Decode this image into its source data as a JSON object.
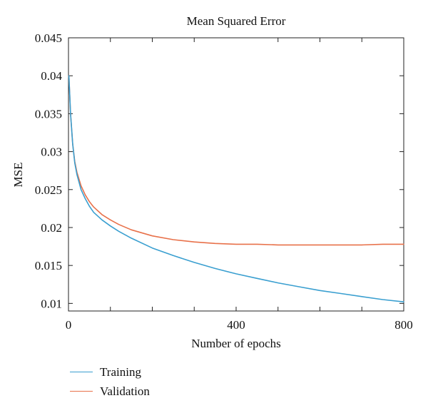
{
  "chart_data": {
    "type": "line",
    "title": "Mean Squared Error",
    "xlabel": "Number of epochs",
    "ylabel": "MSE",
    "xlim": [
      0,
      800
    ],
    "ylim": [
      0.009,
      0.045
    ],
    "xticks": [
      0,
      400,
      800
    ],
    "xtick_labels": [
      "0",
      "400",
      "800"
    ],
    "xminor_ticks": [
      100,
      200,
      300,
      500,
      600,
      700
    ],
    "yticks": [
      0.01,
      0.015,
      0.02,
      0.025,
      0.03,
      0.035,
      0.04,
      0.045
    ],
    "ytick_labels": [
      "0.01",
      "0.015",
      "0.02",
      "0.025",
      "0.03",
      "0.035",
      "0.04",
      "0.045"
    ],
    "legend_position": "below-left",
    "series": [
      {
        "name": "Training",
        "color": "#3a9fd0",
        "x": [
          1,
          5,
          10,
          15,
          20,
          30,
          40,
          50,
          60,
          80,
          100,
          120,
          150,
          200,
          250,
          300,
          350,
          400,
          450,
          500,
          550,
          600,
          650,
          700,
          750,
          800
        ],
        "y": [
          0.04,
          0.035,
          0.031,
          0.0285,
          0.027,
          0.025,
          0.0238,
          0.0228,
          0.022,
          0.021,
          0.0202,
          0.0195,
          0.0186,
          0.0173,
          0.0163,
          0.0154,
          0.0146,
          0.0139,
          0.0133,
          0.0127,
          0.0122,
          0.0117,
          0.0113,
          0.0109,
          0.0105,
          0.0102
        ]
      },
      {
        "name": "Validation",
        "color": "#e8714a",
        "x": [
          1,
          5,
          10,
          15,
          20,
          30,
          40,
          50,
          60,
          80,
          100,
          120,
          150,
          200,
          250,
          300,
          350,
          400,
          450,
          500,
          550,
          600,
          650,
          700,
          750,
          800
        ],
        "y": [
          0.04,
          0.035,
          0.031,
          0.0287,
          0.0273,
          0.0255,
          0.0243,
          0.0234,
          0.0227,
          0.0217,
          0.021,
          0.0204,
          0.0197,
          0.0189,
          0.0184,
          0.0181,
          0.0179,
          0.0178,
          0.0178,
          0.0177,
          0.0177,
          0.0177,
          0.0177,
          0.0177,
          0.0178,
          0.0178
        ]
      }
    ]
  }
}
